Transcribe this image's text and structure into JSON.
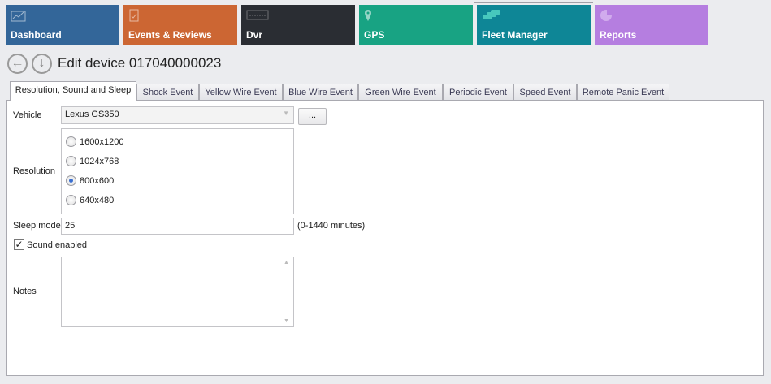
{
  "nav": {
    "tiles": [
      {
        "label": "Dashboard",
        "color": "#336699",
        "icon": "chart-line-icon"
      },
      {
        "label": "Events & Reviews",
        "color": "#cc6633",
        "icon": "clipboard-check-icon"
      },
      {
        "label": "Dvr",
        "color": "#2a2d33",
        "icon": "merge-logo-icon"
      },
      {
        "label": "GPS",
        "color": "#18a383",
        "icon": "map-pin-icon"
      },
      {
        "label": "Fleet Manager",
        "color": "#0e8696",
        "icon": "cars-icon",
        "selected": true
      },
      {
        "label": "Reports",
        "color": "#b57ee0",
        "icon": "pie-chart-icon"
      }
    ]
  },
  "header": {
    "title": "Edit device 017040000023"
  },
  "tabs": [
    "Resolution, Sound and Sleep",
    "Shock Event",
    "Yellow Wire Event",
    "Blue Wire Event",
    "Green Wire Event",
    "Periodic Event",
    "Speed Event",
    "Remote Panic Event"
  ],
  "form": {
    "vehicle_label": "Vehicle",
    "vehicle_value": "Lexus GS350",
    "browse_label": "...",
    "resolution_label": "Resolution",
    "resolutions": [
      "1600x1200",
      "1024x768",
      "800x600",
      "640x480"
    ],
    "resolution_selected": "800x600",
    "sleep_label": "Sleep mode",
    "sleep_value": "25",
    "sleep_hint": "(0-1440 minutes)",
    "sound_label": "Sound enabled",
    "sound_checked": true,
    "notes_label": "Notes",
    "notes_value": ""
  }
}
